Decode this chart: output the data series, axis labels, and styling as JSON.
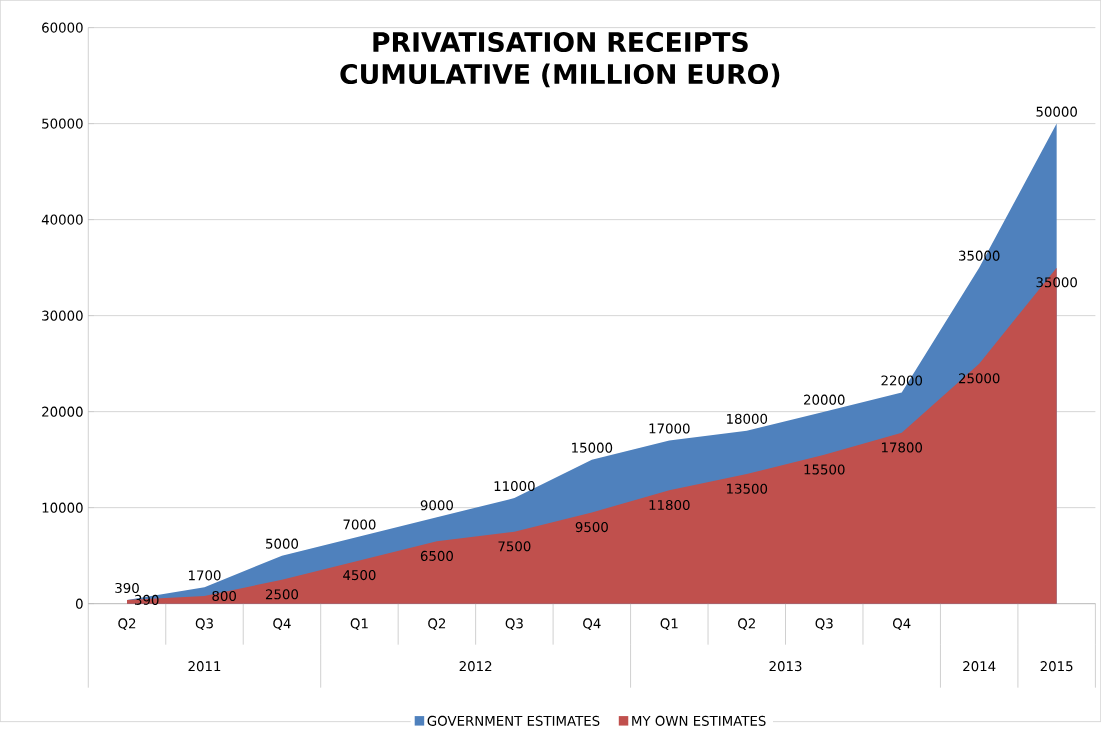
{
  "chart_data": {
    "type": "area",
    "title": "PRIVATISATION RECEIPTS CUMULATIVE (MILLION EURO)",
    "categories": [
      "Q2",
      "Q3",
      "Q4",
      "Q1",
      "Q2",
      "Q3",
      "Q4",
      "Q1",
      "Q2",
      "Q3",
      "Q4",
      null,
      null
    ],
    "annotations": [
      "2011",
      "2012",
      "2013",
      "2014",
      "2015"
    ],
    "series": [
      {
        "name": "GOVERNMENT ESTIMATES",
        "color": "#4f81bd",
        "values": [
          390,
          1700,
          5000,
          7000,
          9000,
          11000,
          15000,
          17000,
          18000,
          20000,
          22000,
          35000,
          50000
        ]
      },
      {
        "name": "MY OWN ESTIMATES",
        "color": "#c0504d",
        "values": [
          390,
          800,
          2500,
          4500,
          6500,
          7500,
          9500,
          11800,
          13500,
          15500,
          17800,
          25000,
          35000
        ]
      }
    ],
    "ylim": [
      0,
      60000
    ],
    "yticks": [
      0,
      10000,
      20000,
      30000,
      40000,
      50000,
      60000
    ],
    "grid": "y",
    "legend": "bottom",
    "data_labels": true
  }
}
